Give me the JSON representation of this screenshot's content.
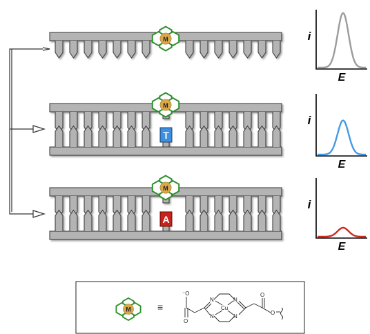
{
  "metal_label": "M",
  "bases": {
    "T": "T",
    "A": "A"
  },
  "legend": {
    "equiv": "≡",
    "metal": "Cu",
    "n_atom": "N",
    "o_atom": "O"
  },
  "plots": [
    {
      "ylabel": "i",
      "xlabel": "E",
      "color": "#9b9b9b",
      "peak_level": 0.92
    },
    {
      "ylabel": "i",
      "xlabel": "E",
      "color": "#4499e6",
      "peak_level": 0.55
    },
    {
      "ylabel": "i",
      "xlabel": "E",
      "color": "#cc2a1e",
      "peak_level": 0.15
    }
  ],
  "colors": {
    "strand": "#b4b4b4",
    "strand_stroke": "#333333",
    "hexagon": "#2e8f2b",
    "metal": "#d9a84a",
    "base_t": "#3d8fe0",
    "base_a": "#c9221a"
  }
}
